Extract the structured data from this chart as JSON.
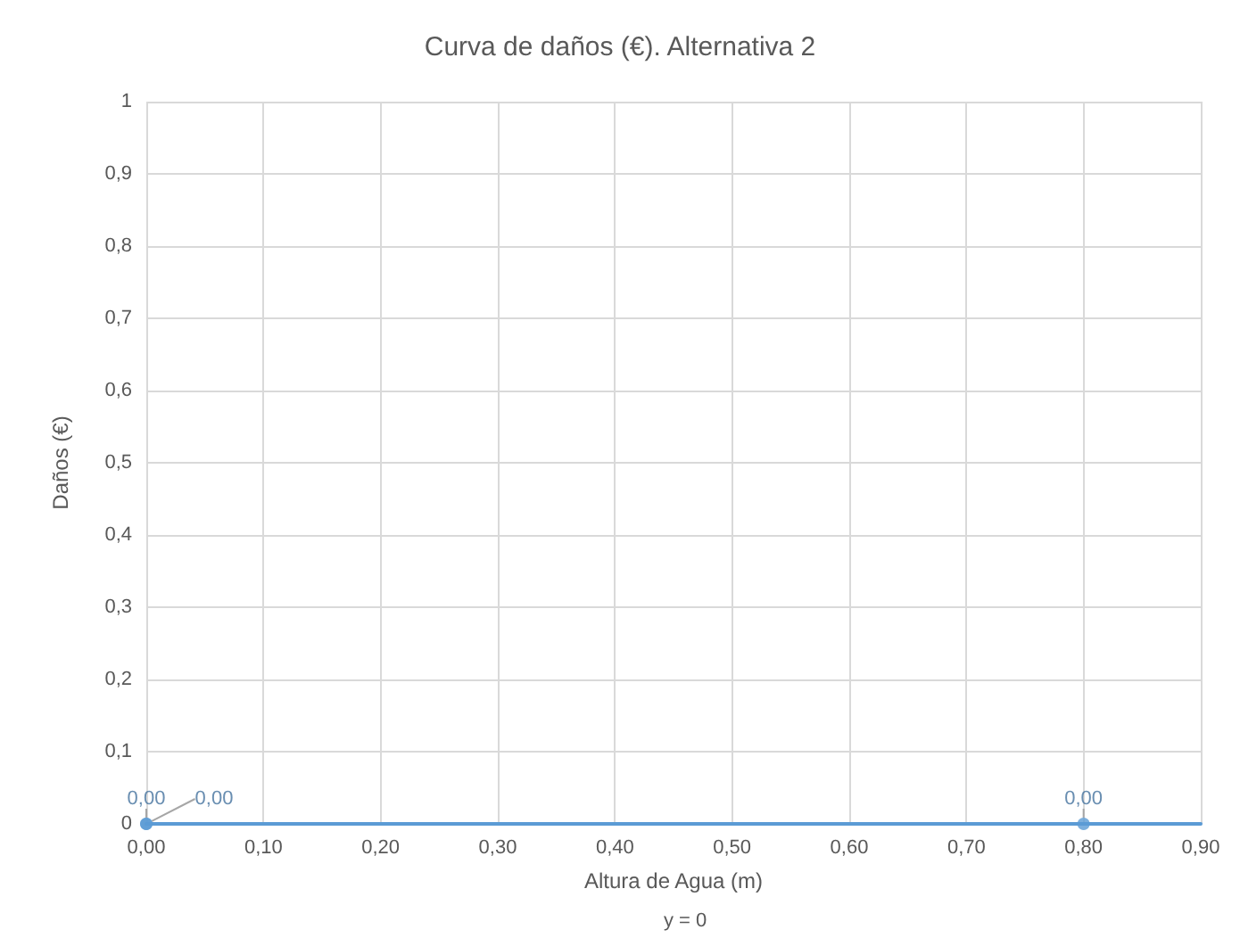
{
  "chart_data": {
    "type": "scatter",
    "title": "Curva de daños (€). Alternativa 2",
    "xlabel": "Altura de Agua (m)",
    "ylabel": "Daños (€)",
    "annotations": [
      "y = 0"
    ],
    "series": [
      {
        "marker": "circle",
        "color": "#5b9bd5",
        "x": [
          0,
          0,
          0.8
        ],
        "values": [
          0,
          0,
          0
        ],
        "value_labels": [
          "0,00",
          "0,00",
          "0,00"
        ]
      },
      {
        "type": "line",
        "marker": "none",
        "color": "#5b9bd5",
        "x": [
          0,
          0.9
        ],
        "values": [
          0,
          0
        ]
      }
    ],
    "xlim": [
      0,
      0.9
    ],
    "xticks": [
      {
        "value": 0,
        "label": "0,00"
      },
      {
        "value": 0.1,
        "label": "0,10"
      },
      {
        "value": 0.2,
        "label": "0,20"
      },
      {
        "value": 0.3,
        "label": "0,30"
      },
      {
        "value": 0.4,
        "label": "0,40"
      },
      {
        "value": 0.5,
        "label": "0,50"
      },
      {
        "value": 0.6,
        "label": "0,60"
      },
      {
        "value": 0.7,
        "label": "0,70"
      },
      {
        "value": 0.8,
        "label": "0,80"
      },
      {
        "value": 0.9,
        "label": "0,90"
      }
    ],
    "ylim": [
      0,
      1
    ],
    "yticks": [
      0,
      {
        "value": 0.1,
        "label": "0,1"
      },
      {
        "value": 0.2,
        "label": "0,2"
      },
      {
        "value": 0.3,
        "label": "0,3"
      },
      {
        "value": 0.4,
        "label": "0,4"
      },
      {
        "value": 0.5,
        "label": "0,5"
      },
      {
        "value": 0.6,
        "label": "0,6"
      },
      {
        "value": 0.7,
        "label": "0,7"
      },
      {
        "value": 0.8,
        "label": "0,8"
      },
      {
        "value": 0.9,
        "label": "0,9"
      },
      1
    ],
    "grid": true
  }
}
